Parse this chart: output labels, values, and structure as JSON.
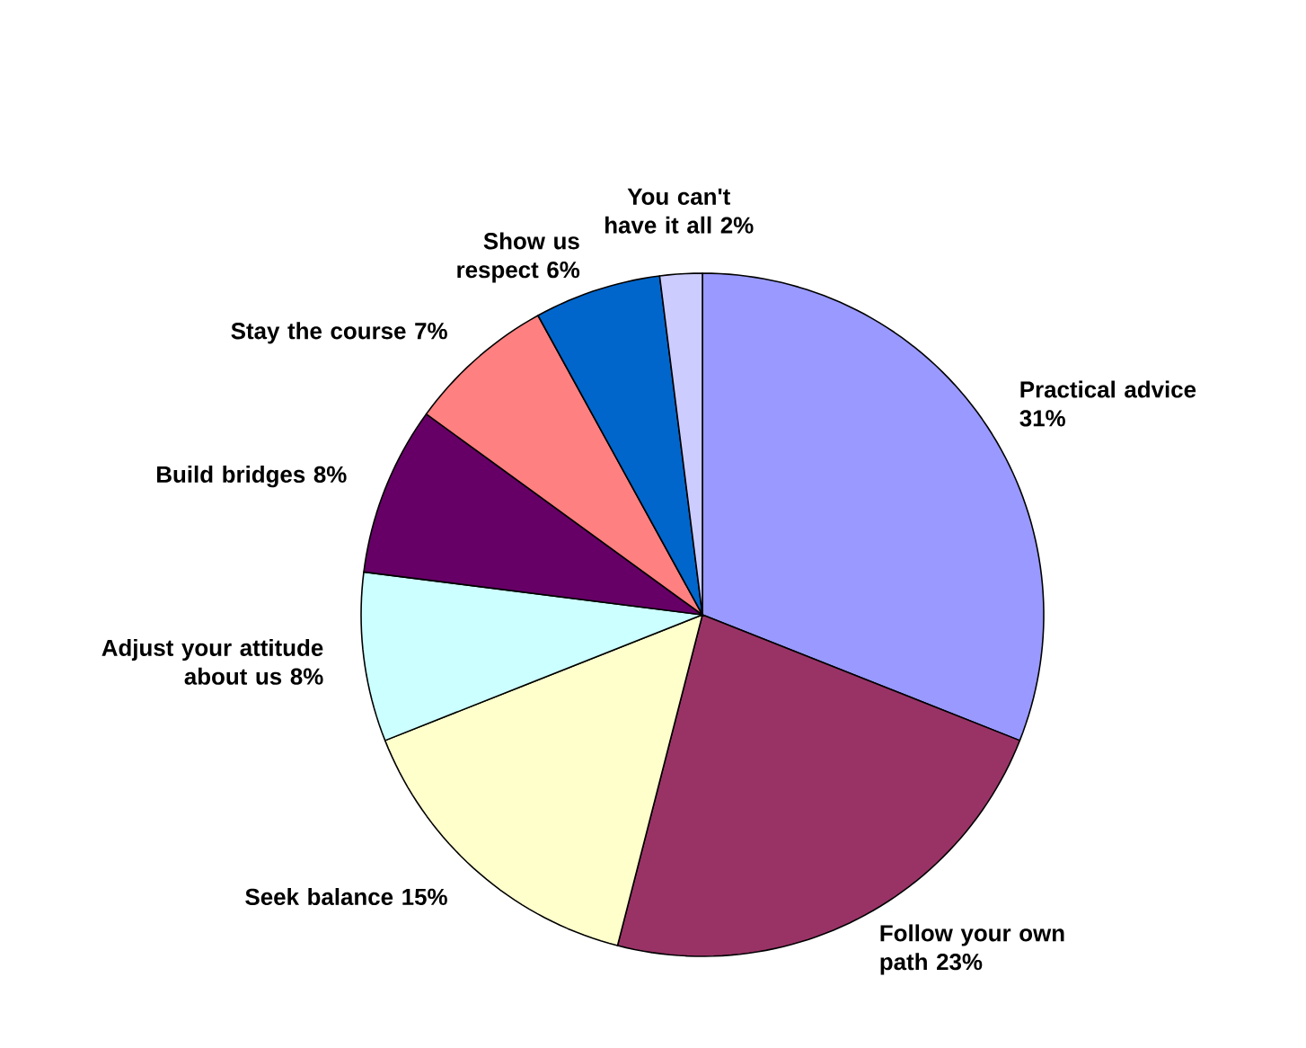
{
  "chart_data": {
    "type": "pie",
    "categories": [
      "Practical advice",
      "Follow your own path",
      "Seek balance",
      "Adjust your attitude about us",
      "Build bridges",
      "Stay the course",
      "Show us respect",
      "You can't have it all"
    ],
    "values": [
      31,
      23,
      15,
      8,
      8,
      7,
      6,
      2
    ],
    "value_labels": [
      "31%",
      "23%",
      "15%",
      "8%",
      "8%",
      "7%",
      "6%",
      "2%"
    ],
    "colors": [
      "#9999ff",
      "#993366",
      "#ffffcc",
      "#ccffff",
      "#660066",
      "#ff8080",
      "#0066cc",
      "#ccccff"
    ]
  }
}
